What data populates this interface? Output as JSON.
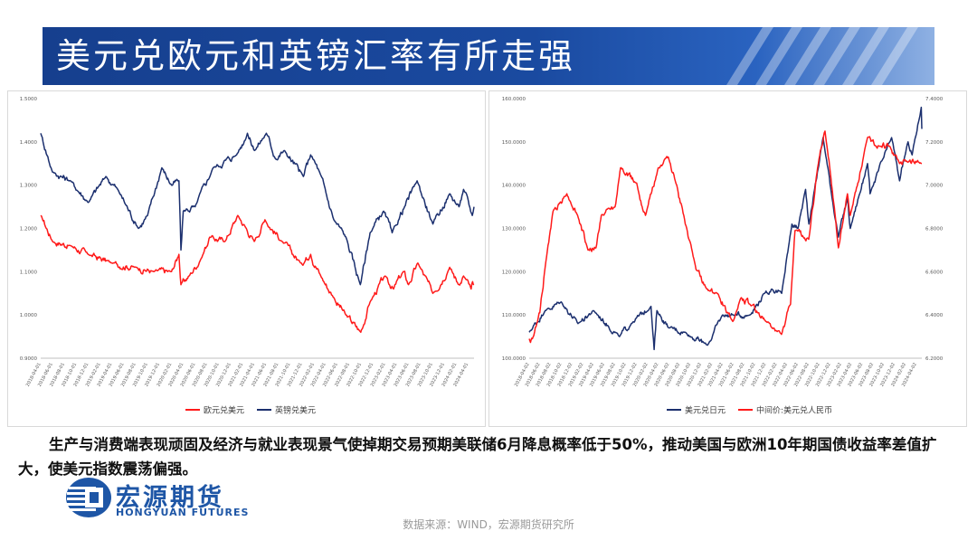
{
  "slide": {
    "title": "美元兑欧元和英镑汇率有所走强",
    "body": "生产与消费端表现顽固及经济与就业表现景气使掉期交易预期美联储6月降息概率低于50%，推动美国与欧洲10年期国债收益率差值扩大，使美元指数震荡偏强。",
    "source": "数据来源：WIND，宏源期货研究所",
    "logo_cn": "宏源期货",
    "logo_en": "HONGYUAN FUTURES",
    "colors": {
      "navy": "#1b2f6e",
      "red": "#ff1a1a",
      "title_bg": "#1a4aa0"
    }
  },
  "chart_data": [
    {
      "type": "line",
      "y_ticks": [
        "1.5000",
        "1.4000",
        "1.3000",
        "1.2000",
        "1.1000",
        "1.0000",
        "0.9000"
      ],
      "ylim": [
        0.9,
        1.5
      ],
      "x_ticks": [
        "2018-04-01",
        "2018-06-01",
        "2018-08-01",
        "2018-10-01",
        "2018-12-01",
        "2019-02-01",
        "2019-04-01",
        "2019-06-01",
        "2019-08-01",
        "2019-10-01",
        "2019-12-01",
        "2020-02-01",
        "2020-04-01",
        "2020-06-01",
        "2020-08-01",
        "2020-10-01",
        "2020-12-01",
        "2021-02-01",
        "2021-04-01",
        "2021-06-01",
        "2021-08-01",
        "2021-10-01",
        "2021-12-01",
        "2022-02-01",
        "2022-04-01",
        "2022-06-01",
        "2022-08-01",
        "2022-10-01",
        "2022-12-01",
        "2023-02-01",
        "2023-04-01",
        "2023-06-01",
        "2023-08-01",
        "2023-10-01",
        "2023-12-01",
        "2024-02-01",
        "2024-04-01"
      ],
      "x_range": [
        "2018-04-01",
        "2024-05-01"
      ],
      "series": [
        {
          "name": "欧元兑美元",
          "color": "#ff1a1a",
          "axis": "left",
          "points": [
            [
              "2018-04-01",
              1.23
            ],
            [
              "2018-06-01",
              1.17
            ],
            [
              "2018-09-01",
              1.16
            ],
            [
              "2018-12-01",
              1.14
            ],
            [
              "2019-04-01",
              1.12
            ],
            [
              "2019-08-01",
              1.11
            ],
            [
              "2019-11-01",
              1.1
            ],
            [
              "2020-02-01",
              1.1
            ],
            [
              "2020-03-10",
              1.14
            ],
            [
              "2020-03-20",
              1.07
            ],
            [
              "2020-05-01",
              1.09
            ],
            [
              "2020-07-01",
              1.13
            ],
            [
              "2020-08-15",
              1.18
            ],
            [
              "2020-11-01",
              1.17
            ],
            [
              "2021-01-06",
              1.23
            ],
            [
              "2021-03-31",
              1.17
            ],
            [
              "2021-05-25",
              1.22
            ],
            [
              "2021-08-20",
              1.17
            ],
            [
              "2021-11-24",
              1.12
            ],
            [
              "2022-01-14",
              1.14
            ],
            [
              "2022-03-07",
              1.09
            ],
            [
              "2022-05-13",
              1.04
            ],
            [
              "2022-07-14",
              1.0
            ],
            [
              "2022-09-28",
              0.96
            ],
            [
              "2022-11-15",
              1.03
            ],
            [
              "2023-01-31",
              1.09
            ],
            [
              "2023-03-15",
              1.06
            ],
            [
              "2023-05-04",
              1.1
            ],
            [
              "2023-05-31",
              1.07
            ],
            [
              "2023-07-18",
              1.12
            ],
            [
              "2023-10-03",
              1.05
            ],
            [
              "2023-12-28",
              1.11
            ],
            [
              "2024-02-14",
              1.07
            ],
            [
              "2024-03-08",
              1.09
            ],
            [
              "2024-04-16",
              1.06
            ],
            [
              "2024-05-01",
              1.07
            ]
          ]
        },
        {
          "name": "英镑兑美元",
          "color": "#1b2f6e",
          "axis": "left",
          "points": [
            [
              "2018-04-01",
              1.42
            ],
            [
              "2018-06-01",
              1.33
            ],
            [
              "2018-09-01",
              1.31
            ],
            [
              "2018-12-01",
              1.26
            ],
            [
              "2019-03-01",
              1.32
            ],
            [
              "2019-05-01",
              1.29
            ],
            [
              "2019-08-15",
              1.2
            ],
            [
              "2019-10-01",
              1.23
            ],
            [
              "2019-12-13",
              1.34
            ],
            [
              "2020-02-01",
              1.3
            ],
            [
              "2020-03-10",
              1.31
            ],
            [
              "2020-03-20",
              1.15
            ],
            [
              "2020-04-01",
              1.24
            ],
            [
              "2020-06-01",
              1.25
            ],
            [
              "2020-09-01",
              1.34
            ],
            [
              "2020-12-31",
              1.37
            ],
            [
              "2021-02-24",
              1.42
            ],
            [
              "2021-04-01",
              1.38
            ],
            [
              "2021-06-01",
              1.42
            ],
            [
              "2021-07-20",
              1.36
            ],
            [
              "2021-09-01",
              1.38
            ],
            [
              "2021-12-08",
              1.32
            ],
            [
              "2022-01-14",
              1.37
            ],
            [
              "2022-03-01",
              1.33
            ],
            [
              "2022-05-13",
              1.22
            ],
            [
              "2022-07-14",
              1.18
            ],
            [
              "2022-09-26",
              1.07
            ],
            [
              "2022-11-15",
              1.19
            ],
            [
              "2023-01-23",
              1.24
            ],
            [
              "2023-03-08",
              1.19
            ],
            [
              "2023-07-14",
              1.31
            ],
            [
              "2023-10-03",
              1.21
            ],
            [
              "2023-12-28",
              1.28
            ],
            [
              "2024-02-14",
              1.25
            ],
            [
              "2024-03-08",
              1.29
            ],
            [
              "2024-04-22",
              1.23
            ],
            [
              "2024-05-01",
              1.25
            ]
          ]
        }
      ],
      "legend": [
        "欧元兑美元",
        "英镑兑美元"
      ]
    },
    {
      "type": "line",
      "y_ticks_left": [
        "160.0000",
        "150.0000",
        "140.0000",
        "130.0000",
        "120.0000",
        "110.0000",
        "100.0000"
      ],
      "ylim_left": [
        100,
        160
      ],
      "y_ticks_right": [
        "7.4000",
        "7.2000",
        "7.0000",
        "6.8000",
        "6.6000",
        "6.4000",
        "6.2000"
      ],
      "ylim_right": [
        6.2,
        7.4
      ],
      "x_ticks": [
        "2018-04-02",
        "2018-06-02",
        "2018-08-02",
        "2018-10-02",
        "2018-12-02",
        "2019-02-02",
        "2019-04-02",
        "2019-06-02",
        "2019-08-02",
        "2019-10-02",
        "2019-12-02",
        "2020-02-02",
        "2020-04-02",
        "2020-06-02",
        "2020-08-02",
        "2020-10-02",
        "2020-12-02",
        "2021-02-02",
        "2021-04-02",
        "2021-06-02",
        "2021-08-02",
        "2021-10-02",
        "2021-12-02",
        "2022-02-02",
        "2022-04-02",
        "2022-06-02",
        "2022-08-02",
        "2022-10-02",
        "2022-12-02",
        "2023-02-02",
        "2023-04-02",
        "2023-06-02",
        "2023-08-02",
        "2023-10-02",
        "2023-12-02",
        "2024-02-02",
        "2024-04-02"
      ],
      "x_range": [
        "2018-04-02",
        "2024-05-02"
      ],
      "series": [
        {
          "name": "美元兑日元",
          "color": "#1b2f6e",
          "axis": "left",
          "points": [
            [
              "2018-04-02",
              106
            ],
            [
              "2018-07-01",
              111
            ],
            [
              "2018-10-01",
              113
            ],
            [
              "2019-01-03",
              108
            ],
            [
              "2019-04-01",
              111
            ],
            [
              "2019-08-26",
              105
            ],
            [
              "2019-11-01",
              108
            ],
            [
              "2020-02-20",
              112
            ],
            [
              "2020-03-09",
              102
            ],
            [
              "2020-03-25",
              111
            ],
            [
              "2020-06-01",
              107
            ],
            [
              "2020-09-01",
              106
            ],
            [
              "2021-01-05",
              103
            ],
            [
              "2021-03-31",
              110
            ],
            [
              "2021-06-01",
              110
            ],
            [
              "2021-09-01",
              110
            ],
            [
              "2021-11-24",
              115
            ],
            [
              "2022-01-04",
              116
            ],
            [
              "2022-03-01",
              115
            ],
            [
              "2022-04-28",
              131
            ],
            [
              "2022-06-01",
              130
            ],
            [
              "2022-07-14",
              139
            ],
            [
              "2022-08-02",
              131
            ],
            [
              "2022-10-21",
              151
            ],
            [
              "2023-01-16",
              128
            ],
            [
              "2023-03-08",
              137
            ],
            [
              "2023-03-24",
              130
            ],
            [
              "2023-06-30",
              145
            ],
            [
              "2023-07-14",
              138
            ],
            [
              "2023-11-13",
              151
            ],
            [
              "2023-12-28",
              141
            ],
            [
              "2024-02-14",
              150
            ],
            [
              "2024-03-08",
              147
            ],
            [
              "2024-04-29",
              158
            ],
            [
              "2024-05-02",
              153
            ]
          ]
        },
        {
          "name": "中间价:美元兑人民币",
          "color": "#ff1a1a",
          "axis": "right",
          "points": [
            [
              "2018-04-02",
              6.29
            ],
            [
              "2018-04-20",
              6.29
            ],
            [
              "2018-05-15",
              6.36
            ],
            [
              "2018-06-01",
              6.41
            ],
            [
              "2018-07-01",
              6.62
            ],
            [
              "2018-08-15",
              6.88
            ],
            [
              "2018-11-01",
              6.96
            ],
            [
              "2019-01-01",
              6.86
            ],
            [
              "2019-03-01",
              6.7
            ],
            [
              "2019-04-15",
              6.71
            ],
            [
              "2019-05-15",
              6.86
            ],
            [
              "2019-08-01",
              6.9
            ],
            [
              "2019-09-01",
              7.08
            ],
            [
              "2019-12-01",
              7.01
            ],
            [
              "2020-01-20",
              6.86
            ],
            [
              "2020-04-01",
              7.08
            ],
            [
              "2020-05-28",
              7.13
            ],
            [
              "2020-07-15",
              7.0
            ],
            [
              "2020-09-01",
              6.82
            ],
            [
              "2020-11-01",
              6.61
            ],
            [
              "2021-01-01",
              6.52
            ],
            [
              "2021-03-01",
              6.5
            ],
            [
              "2021-05-28",
              6.37
            ],
            [
              "2021-07-15",
              6.48
            ],
            [
              "2021-09-01",
              6.45
            ],
            [
              "2021-12-01",
              6.37
            ],
            [
              "2022-02-28",
              6.31
            ],
            [
              "2022-04-20",
              6.45
            ],
            [
              "2022-05-15",
              6.79
            ],
            [
              "2022-08-01",
              6.75
            ],
            [
              "2022-09-28",
              7.12
            ],
            [
              "2022-11-01",
              7.25
            ],
            [
              "2022-12-01",
              7.06
            ],
            [
              "2023-01-16",
              6.71
            ],
            [
              "2023-03-08",
              6.96
            ],
            [
              "2023-03-24",
              6.86
            ],
            [
              "2023-06-30",
              7.22
            ],
            [
              "2023-09-08",
              7.18
            ],
            [
              "2023-11-01",
              7.18
            ],
            [
              "2023-12-28",
              7.1
            ],
            [
              "2024-02-01",
              7.11
            ],
            [
              "2024-05-02",
              7.1
            ]
          ]
        }
      ],
      "legend": [
        "美元兑日元",
        "中间价:美元兑人民币"
      ]
    }
  ]
}
